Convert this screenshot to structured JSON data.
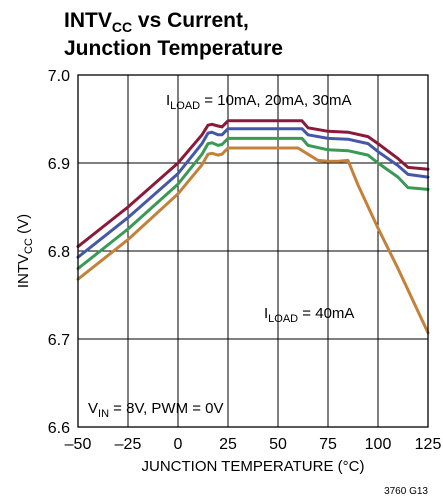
{
  "figure": {
    "title_line1_main": "INTV",
    "title_line1_sub": "CC",
    "title_line1_rest": " vs Current,",
    "title_line2": "Junction Temperature",
    "figure_code": "3760 G13"
  },
  "annotations": {
    "load_top_prefix": "I",
    "load_top_sub": "LOAD",
    "load_top_rest": " = 10mA, 20mA, 30mA",
    "load_bottom_prefix": "I",
    "load_bottom_sub": "LOAD",
    "load_bottom_rest": " = 40mA",
    "conditions_prefix": "V",
    "conditions_sub": "IN",
    "conditions_rest": " = 8V, PWM = 0V"
  },
  "chart_data": {
    "type": "line",
    "xlabel": "JUNCTION TEMPERATURE (°C)",
    "ylabel_main": "INTV",
    "ylabel_sub": "CC",
    "ylabel_rest": " (V)",
    "xlim": [
      -50,
      125
    ],
    "ylim": [
      6.6,
      7.0
    ],
    "xticks": [
      -50,
      -25,
      0,
      25,
      50,
      75,
      100,
      125
    ],
    "xtick_labels": [
      "–50",
      "–25",
      "0",
      "25",
      "50",
      "75",
      "100",
      "125"
    ],
    "yticks": [
      6.6,
      6.7,
      6.8,
      6.9,
      7.0
    ],
    "ytick_labels": [
      "6.6",
      "6.7",
      "6.8",
      "6.9",
      "7.0"
    ],
    "grid": true,
    "series": [
      {
        "color": "#8b1a3a",
        "x": [
          -50,
          -25,
          0,
          12,
          15,
          17,
          20,
          22,
          25,
          30,
          50,
          62,
          65,
          75,
          85,
          95,
          100,
          110,
          115,
          125
        ],
        "y": [
          6.805,
          6.85,
          6.9,
          6.932,
          6.943,
          6.944,
          6.942,
          6.941,
          6.948,
          6.948,
          6.948,
          6.948,
          6.94,
          6.936,
          6.935,
          6.93,
          6.922,
          6.905,
          6.895,
          6.893
        ]
      },
      {
        "color": "#4558a8",
        "x": [
          -50,
          -25,
          0,
          12,
          15,
          17,
          20,
          22,
          25,
          30,
          50,
          62,
          65,
          75,
          85,
          95,
          100,
          110,
          115,
          125
        ],
        "y": [
          6.793,
          6.838,
          6.888,
          6.922,
          6.934,
          6.935,
          6.932,
          6.932,
          6.939,
          6.939,
          6.939,
          6.939,
          6.932,
          6.928,
          6.927,
          6.922,
          6.913,
          6.897,
          6.887,
          6.884
        ]
      },
      {
        "color": "#3a9a55",
        "x": [
          -50,
          -25,
          0,
          12,
          15,
          17,
          20,
          22,
          25,
          30,
          50,
          62,
          65,
          75,
          85,
          95,
          100,
          110,
          115,
          125
        ],
        "y": [
          6.78,
          6.825,
          6.876,
          6.91,
          6.922,
          6.923,
          6.92,
          6.921,
          6.928,
          6.928,
          6.928,
          6.928,
          6.92,
          6.915,
          6.914,
          6.909,
          6.9,
          6.884,
          6.872,
          6.87
        ]
      },
      {
        "color": "#c4813a",
        "x": [
          -50,
          -25,
          0,
          12,
          15,
          17,
          20,
          22,
          25,
          30,
          50,
          60,
          65,
          70,
          75,
          80,
          85,
          90,
          100,
          110,
          125
        ],
        "y": [
          6.768,
          6.813,
          6.865,
          6.898,
          6.91,
          6.911,
          6.909,
          6.91,
          6.917,
          6.917,
          6.917,
          6.917,
          6.91,
          6.903,
          6.902,
          6.902,
          6.903,
          6.875,
          6.826,
          6.78,
          6.707
        ]
      }
    ]
  }
}
